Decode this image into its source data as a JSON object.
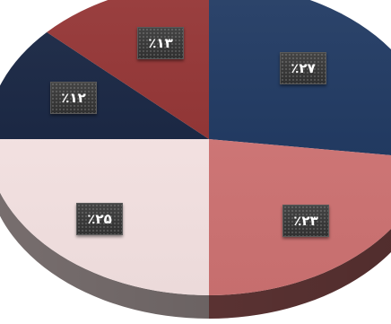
{
  "chart_data": {
    "type": "pie",
    "values": [
      27,
      23,
      25,
      12,
      13
    ],
    "labels": [
      "٪۲۷",
      "٪۲۳",
      "٪۲۵",
      "٪۱۲",
      "٪۱۳"
    ],
    "colors": [
      "#1b355f",
      "#d37575",
      "#fbe8e8",
      "#13213f",
      "#923030"
    ]
  }
}
